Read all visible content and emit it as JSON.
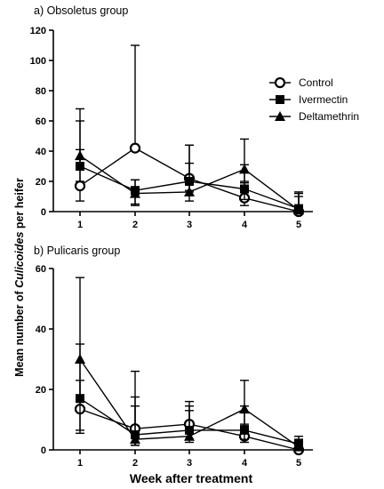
{
  "chart_data": [
    {
      "type": "line",
      "title": "a) Obsoletus group",
      "x": [
        "1",
        "2",
        "3",
        "4",
        "5"
      ],
      "ylim": [
        0,
        120
      ],
      "yticks": [
        0,
        20,
        40,
        60,
        80,
        100,
        120
      ],
      "series": [
        {
          "name": "Control",
          "marker": "circle-open",
          "values": [
            17,
            42,
            22,
            9,
            0
          ],
          "upper": [
            41,
            110,
            32,
            19,
            10
          ]
        },
        {
          "name": "Ivermectin",
          "marker": "square",
          "values": [
            30,
            14,
            20,
            15,
            2
          ],
          "upper": [
            60,
            21,
            44,
            31,
            12
          ]
        },
        {
          "name": "Deltamethrin",
          "marker": "triangle",
          "values": [
            37,
            12,
            13,
            28,
            1
          ],
          "upper": [
            68,
            21,
            44,
            48,
            13
          ]
        }
      ],
      "lower": [
        [
          7,
          42,
          13,
          4,
          0
        ],
        [
          20,
          4,
          14,
          8,
          0
        ],
        [
          30,
          5,
          7,
          20,
          0
        ]
      ],
      "legend_position": "right"
    },
    {
      "type": "line",
      "title": "b) Pulicaris group",
      "x": [
        "1",
        "2",
        "3",
        "4",
        "5"
      ],
      "ylim": [
        0,
        60
      ],
      "yticks": [
        0,
        20,
        40,
        60
      ],
      "series": [
        {
          "name": "Control",
          "marker": "circle-open",
          "values": [
            13.5,
            7,
            8.5,
            4.5,
            0
          ],
          "upper": [
            23,
            26,
            16,
            8,
            1.5
          ]
        },
        {
          "name": "Ivermectin",
          "marker": "square",
          "values": [
            17,
            5,
            6.5,
            6.5,
            2
          ],
          "upper": [
            35,
            14.5,
            14.5,
            14.5,
            4.5
          ]
        },
        {
          "name": "Deltamethrin",
          "marker": "triangle",
          "values": [
            30,
            3.5,
            4.5,
            13.5,
            1
          ],
          "upper": [
            57,
            17.5,
            13,
            23,
            3.5
          ]
        }
      ],
      "lower": [
        [
          5.5,
          2.5,
          5.5,
          2.5,
          0
        ],
        [
          6.5,
          1.5,
          3.5,
          3.5,
          0
        ],
        [
          17,
          1.5,
          2.5,
          8.5,
          0
        ]
      ]
    }
  ],
  "ylabel_parts": [
    "Mean number of ",
    "Culicoides",
    " per heifer"
  ],
  "xlabel": "Week after treatment"
}
